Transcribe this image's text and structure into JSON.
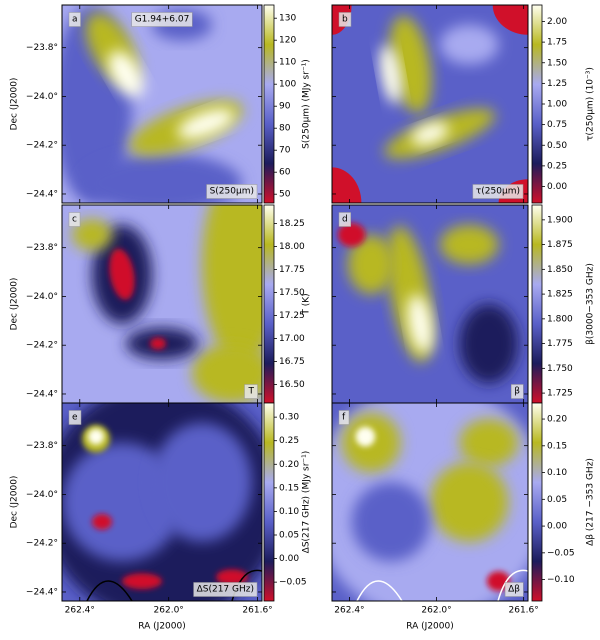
{
  "chart_data": {
    "type": "map_grid",
    "x_axis": {
      "label": "RA (J2000)",
      "lim": [
        262.48,
        261.58
      ],
      "ticks": [
        {
          "value": 262.4,
          "label": "262.4°"
        },
        {
          "value": 262.0,
          "label": "262.0°"
        },
        {
          "value": 261.6,
          "label": "261.6°"
        }
      ]
    },
    "y_axis": {
      "label": "Dec (J2000)",
      "lim": [
        -24.437,
        -23.625
      ],
      "ticks": [
        {
          "value": -23.8,
          "label": "−23.8°"
        },
        {
          "value": -24.0,
          "label": "−24.0°"
        },
        {
          "value": -24.2,
          "label": "−24.2°"
        },
        {
          "value": -24.4,
          "label": "−24.4°"
        }
      ]
    },
    "colormap": [
      "#d0102a",
      "#1c1c5c",
      "#5a60c8",
      "#a8aaf0",
      "#b8b820",
      "#fffff0"
    ],
    "panels": [
      {
        "type": "map",
        "panel": "a",
        "annotations": [
          "G1.94+6.07",
          "S(250μm)"
        ],
        "colorbar": {
          "label": "S(250μm) (MJy sr⁻¹)",
          "lim": [
            46,
            136
          ],
          "ticks": [
            50,
            60,
            70,
            80,
            90,
            100,
            110,
            120,
            130
          ]
        }
      },
      {
        "type": "map",
        "panel": "b",
        "annotations": [
          "τ(250μm)"
        ],
        "colorbar": {
          "label": "τ(250μm) (10⁻³)",
          "lim": [
            -0.2,
            2.2
          ],
          "ticks": [
            {
              "value": 0,
              "label": "0.00"
            },
            {
              "value": 0.25,
              "label": "0.25"
            },
            {
              "value": 0.5,
              "label": "0.50"
            },
            {
              "value": 0.75,
              "label": "0.75"
            },
            {
              "value": 1,
              "label": "1.00"
            },
            {
              "value": 1.25,
              "label": "1.25"
            },
            {
              "value": 1.5,
              "label": "1.50"
            },
            {
              "value": 1.75,
              "label": "1.75"
            },
            {
              "value": 2,
              "label": "2.00"
            }
          ]
        }
      },
      {
        "type": "map",
        "panel": "c",
        "annotations": [
          "T"
        ],
        "colorbar": {
          "label": "T (K)",
          "lim": [
            16.3,
            18.45
          ],
          "ticks": [
            {
              "value": 16.5,
              "label": "16.50"
            },
            16.75,
            {
              "value": 17,
              "label": "17.00"
            },
            17.25,
            {
              "value": 17.5,
              "label": "17.50"
            },
            17.75,
            {
              "value": 18,
              "label": "18.00"
            },
            18.25
          ]
        }
      },
      {
        "type": "map",
        "panel": "d",
        "annotations": [
          "β"
        ],
        "colorbar": {
          "label": "β(3000−353 GHz)",
          "lim": [
            1.715,
            1.915
          ],
          "ticks": [
            1.725,
            {
              "value": 1.75,
              "label": "1.750"
            },
            1.775,
            {
              "value": 1.8,
              "label": "1.800"
            },
            1.825,
            {
              "value": 1.85,
              "label": "1.850"
            },
            1.875,
            {
              "value": 1.9,
              "label": "1.900"
            }
          ]
        }
      },
      {
        "type": "map",
        "panel": "e",
        "annotations": [
          "ΔS(217 GHz)"
        ],
        "colorbar": {
          "label": "ΔS(217 GHz) (MJy sr⁻¹)",
          "lim": [
            -0.09,
            0.33
          ],
          "ticks": [
            {
              "value": -0.05,
              "label": "−0.05"
            },
            {
              "value": 0,
              "label": "0.00"
            },
            {
              "value": 0.05,
              "label": "0.05"
            },
            {
              "value": 0.1,
              "label": "0.10"
            },
            {
              "value": 0.15,
              "label": "0.15"
            },
            {
              "value": 0.2,
              "label": "0.20"
            },
            {
              "value": 0.25,
              "label": "0.25"
            },
            {
              "value": 0.3,
              "label": "0.30"
            }
          ]
        }
      },
      {
        "type": "map",
        "panel": "f",
        "annotations": [
          "Δβ"
        ],
        "colorbar": {
          "label": "Δβ (217 −353 GHz)",
          "lim": [
            -0.14,
            0.23
          ],
          "ticks": [
            {
              "value": -0.1,
              "label": "−0.10"
            },
            {
              "value": -0.05,
              "label": "−0.05"
            },
            {
              "value": 0,
              "label": "0.00"
            },
            {
              "value": 0.05,
              "label": "0.05"
            },
            {
              "value": 0.1,
              "label": "0.10"
            },
            {
              "value": 0.15,
              "label": "0.15"
            },
            {
              "value": 0.2,
              "label": "0.20"
            }
          ]
        }
      }
    ]
  }
}
